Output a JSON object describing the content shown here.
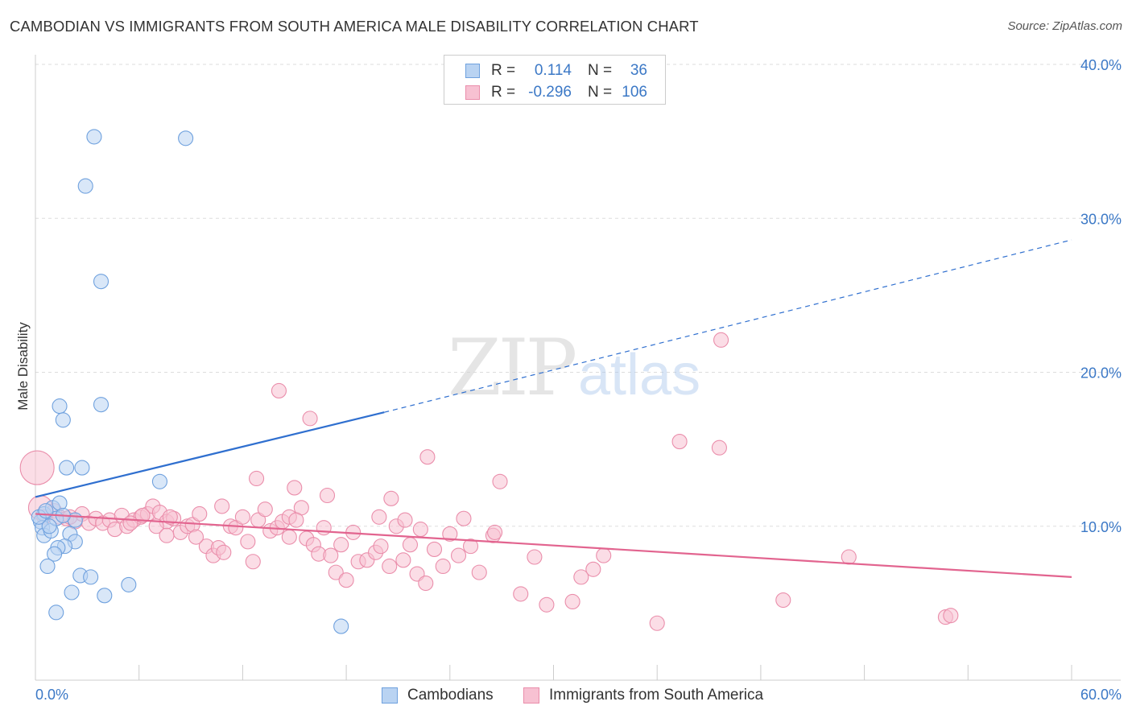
{
  "title": "CAMBODIAN VS IMMIGRANTS FROM SOUTH AMERICA MALE DISABILITY CORRELATION CHART",
  "source": "Source: ZipAtlas.com",
  "watermark": {
    "zip": "ZIP",
    "atlas": "atlas"
  },
  "legend": {
    "r_label": "R =",
    "n_label": "N =",
    "rows": [
      {
        "r": "0.114",
        "n": "36"
      },
      {
        "r": "-0.296",
        "n": "106"
      }
    ]
  },
  "colors": {
    "blue_fill": "#b9d3f2",
    "blue_stroke": "#6fa1de",
    "blue_line": "#2f6fcf",
    "pink_fill": "#f7c1d2",
    "pink_stroke": "#ea8eab",
    "pink_line": "#e2648f",
    "grid": "#dddddd",
    "axis_text": "#3b78c6"
  },
  "chart_data": {
    "type": "scatter",
    "title": "CAMBODIAN VS IMMIGRANTS FROM SOUTH AMERICA MALE DISABILITY CORRELATION CHART",
    "xlabel": "",
    "ylabel": "Male Disability",
    "xlim": [
      0,
      60
    ],
    "ylim": [
      0,
      40
    ],
    "x_tick_labels": {
      "min": "0.0%",
      "max": "60.0%"
    },
    "y_ticks": [
      {
        "value": 10,
        "label": "10.0%"
      },
      {
        "value": 20,
        "label": "20.0%"
      },
      {
        "value": 30,
        "label": "30.0%"
      },
      {
        "value": 40,
        "label": "40.0%"
      }
    ],
    "grid": true,
    "series": [
      {
        "name": "Cambodians",
        "color": "blue",
        "r": 0.114,
        "n": 36,
        "points": [
          [
            3.4,
            35.3
          ],
          [
            8.7,
            35.2
          ],
          [
            2.9,
            32.1
          ],
          [
            3.8,
            25.9
          ],
          [
            1.4,
            17.8
          ],
          [
            3.8,
            17.9
          ],
          [
            1.6,
            16.9
          ],
          [
            1.8,
            13.8
          ],
          [
            2.7,
            13.8
          ],
          [
            7.2,
            12.9
          ],
          [
            0.5,
            10.8
          ],
          [
            1.0,
            11.2
          ],
          [
            0.3,
            10.3
          ],
          [
            0.4,
            9.9
          ],
          [
            0.5,
            9.4
          ],
          [
            0.9,
            9.7
          ],
          [
            1.2,
            10.5
          ],
          [
            2.0,
            9.5
          ],
          [
            2.3,
            10.4
          ],
          [
            2.3,
            9.0
          ],
          [
            1.7,
            8.7
          ],
          [
            1.3,
            8.6
          ],
          [
            1.1,
            8.2
          ],
          [
            0.7,
            7.4
          ],
          [
            2.6,
            6.8
          ],
          [
            3.2,
            6.7
          ],
          [
            5.4,
            6.2
          ],
          [
            2.1,
            5.7
          ],
          [
            4.0,
            5.5
          ],
          [
            1.2,
            4.4
          ],
          [
            17.7,
            3.5
          ],
          [
            1.4,
            11.5
          ],
          [
            1.6,
            10.7
          ],
          [
            0.8,
            10.0
          ],
          [
            0.2,
            10.6
          ],
          [
            0.6,
            11.0
          ]
        ],
        "trend": {
          "x_start": 0,
          "y_start": 11.9,
          "x_solid_end": 20.2,
          "y_solid_end": 17.4,
          "x_end": 60,
          "y_end": 28.6
        }
      },
      {
        "name": "Immigrants from South America",
        "color": "pink",
        "r": -0.296,
        "n": 106,
        "points": [
          [
            0.1,
            13.8
          ],
          [
            0.3,
            11.2
          ],
          [
            0.5,
            10.6
          ],
          [
            1.1,
            11.0
          ],
          [
            1.4,
            10.6
          ],
          [
            1.8,
            10.5
          ],
          [
            2.3,
            10.3
          ],
          [
            2.7,
            10.8
          ],
          [
            3.1,
            10.2
          ],
          [
            3.5,
            10.5
          ],
          [
            3.9,
            10.2
          ],
          [
            4.3,
            10.4
          ],
          [
            4.6,
            9.8
          ],
          [
            5.0,
            10.7
          ],
          [
            5.3,
            10.0
          ],
          [
            5.7,
            10.4
          ],
          [
            6.1,
            10.6
          ],
          [
            6.5,
            10.8
          ],
          [
            6.8,
            11.3
          ],
          [
            7.2,
            10.9
          ],
          [
            7.6,
            10.3
          ],
          [
            8.0,
            10.5
          ],
          [
            8.4,
            9.6
          ],
          [
            8.8,
            10.0
          ],
          [
            9.1,
            10.1
          ],
          [
            9.5,
            10.8
          ],
          [
            9.9,
            8.7
          ],
          [
            10.3,
            8.1
          ],
          [
            10.6,
            8.6
          ],
          [
            10.9,
            8.3
          ],
          [
            11.3,
            10.0
          ],
          [
            11.6,
            9.9
          ],
          [
            12.0,
            10.6
          ],
          [
            12.3,
            9.0
          ],
          [
            12.6,
            7.7
          ],
          [
            12.9,
            10.4
          ],
          [
            13.3,
            11.1
          ],
          [
            13.6,
            9.7
          ],
          [
            14.0,
            9.9
          ],
          [
            14.3,
            10.3
          ],
          [
            14.7,
            9.3
          ],
          [
            15.0,
            12.5
          ],
          [
            15.4,
            11.2
          ],
          [
            15.7,
            9.2
          ],
          [
            16.1,
            8.8
          ],
          [
            16.4,
            8.2
          ],
          [
            16.7,
            9.9
          ],
          [
            17.1,
            8.1
          ],
          [
            17.4,
            7.0
          ],
          [
            17.7,
            8.8
          ],
          [
            18.0,
            6.5
          ],
          [
            18.4,
            9.6
          ],
          [
            18.7,
            7.7
          ],
          [
            19.2,
            7.8
          ],
          [
            19.7,
            8.3
          ],
          [
            20.0,
            8.7
          ],
          [
            20.5,
            7.4
          ],
          [
            20.9,
            10.0
          ],
          [
            21.3,
            7.8
          ],
          [
            21.7,
            8.8
          ],
          [
            22.1,
            6.9
          ],
          [
            22.6,
            6.3
          ],
          [
            23.1,
            8.5
          ],
          [
            23.6,
            7.4
          ],
          [
            24.0,
            9.5
          ],
          [
            24.5,
            8.1
          ],
          [
            24.8,
            10.5
          ],
          [
            25.2,
            8.7
          ],
          [
            25.7,
            7.0
          ],
          [
            26.5,
            9.4
          ],
          [
            26.6,
            9.6
          ],
          [
            7.8,
            10.6
          ],
          [
            6.2,
            10.7
          ],
          [
            10.8,
            11.3
          ],
          [
            14.7,
            10.6
          ],
          [
            15.1,
            10.4
          ],
          [
            16.9,
            12.0
          ],
          [
            19.9,
            10.6
          ],
          [
            20.6,
            11.8
          ],
          [
            21.4,
            10.4
          ],
          [
            22.3,
            9.8
          ],
          [
            22.7,
            14.5
          ],
          [
            26.9,
            12.9
          ],
          [
            28.9,
            8.0
          ],
          [
            29.6,
            4.9
          ],
          [
            31.1,
            5.1
          ],
          [
            31.6,
            6.7
          ],
          [
            32.3,
            7.2
          ],
          [
            32.9,
            8.1
          ],
          [
            36.0,
            3.7
          ],
          [
            37.3,
            15.5
          ],
          [
            39.6,
            15.1
          ],
          [
            39.7,
            22.1
          ],
          [
            43.3,
            5.2
          ],
          [
            47.1,
            8.0
          ],
          [
            52.7,
            4.1
          ],
          [
            53.0,
            4.2
          ],
          [
            14.1,
            18.8
          ],
          [
            15.9,
            17.0
          ],
          [
            12.8,
            13.1
          ],
          [
            28.1,
            5.6
          ],
          [
            5.5,
            10.2
          ],
          [
            7.0,
            10.0
          ],
          [
            7.6,
            9.4
          ],
          [
            9.3,
            9.3
          ],
          [
            2.0,
            10.6
          ]
        ],
        "trend": {
          "x_start": 0,
          "y_start": 10.8,
          "x_end": 60,
          "y_end": 6.7
        }
      }
    ]
  }
}
